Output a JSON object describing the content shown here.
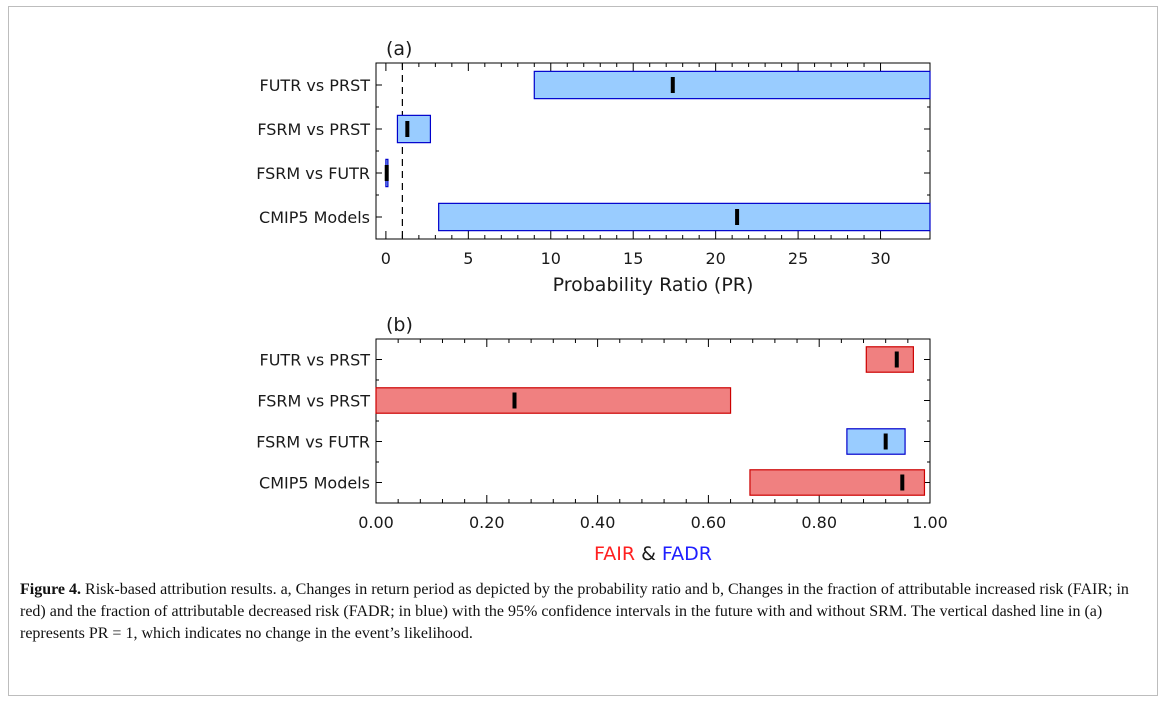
{
  "chart_data": [
    {
      "type": "bar",
      "subtype": "horizontal-interval",
      "panel_label": "(a)",
      "xlabel": "Probability Ratio (PR)",
      "xlim": [
        -0.6,
        33
      ],
      "xticks": [
        0,
        5,
        10,
        15,
        20,
        25,
        30
      ],
      "xtick_labels": [
        "0",
        "5",
        "10",
        "15",
        "20",
        "25",
        "30"
      ],
      "reference_line_x": 1,
      "categories": [
        "FUTR vs PRST",
        "FSRM vs PRST",
        "FSRM vs FUTR",
        "CMIP5 Models"
      ],
      "lower": [
        9.0,
        0.7,
        0.0,
        3.2
      ],
      "upper": [
        33,
        2.7,
        0.1,
        33
      ],
      "estimate": [
        17.4,
        1.3,
        0.05,
        21.3
      ],
      "bar_colors": [
        "#99ccff",
        "#99ccff",
        "#99ccff",
        "#99ccff"
      ]
    },
    {
      "type": "bar",
      "subtype": "horizontal-interval",
      "panel_label": "(b)",
      "xlim": [
        0,
        1
      ],
      "xticks": [
        0,
        0.2,
        0.4,
        0.6,
        0.8,
        1.0
      ],
      "xtick_labels": [
        "0.00",
        "0.20",
        "0.40",
        "0.60",
        "0.80",
        "1.00"
      ],
      "xlabel_parts": [
        {
          "text": "FAIR",
          "color": "#ff2020"
        },
        {
          "text": "&",
          "color": "#1a1a1a"
        },
        {
          "text": "FADR",
          "color": "#2020ff"
        }
      ],
      "categories": [
        "FUTR vs PRST",
        "FSRM vs PRST",
        "FSRM vs FUTR",
        "CMIP5 Models"
      ],
      "lower": [
        0.885,
        0.0,
        0.85,
        0.675
      ],
      "upper": [
        0.97,
        0.64,
        0.955,
        0.99
      ],
      "estimate": [
        0.94,
        0.25,
        0.92,
        0.95
      ],
      "bar_colors": [
        "#f08080",
        "#f08080",
        "#99ccff",
        "#f08080"
      ]
    }
  ],
  "caption": {
    "label": "Figure 4.",
    "text": "Risk-based attribution results. a, Changes in return period as depicted by the probability ratio and b, Changes in the fraction of attributable increased risk (FAIR; in red) and the fraction of attributable decreased risk (FADR; in blue) with the 95% confidence intervals in the future with and without SRM. The vertical dashed line in (a) represents PR = 1, which indicates no change in the event’s likelihood."
  }
}
